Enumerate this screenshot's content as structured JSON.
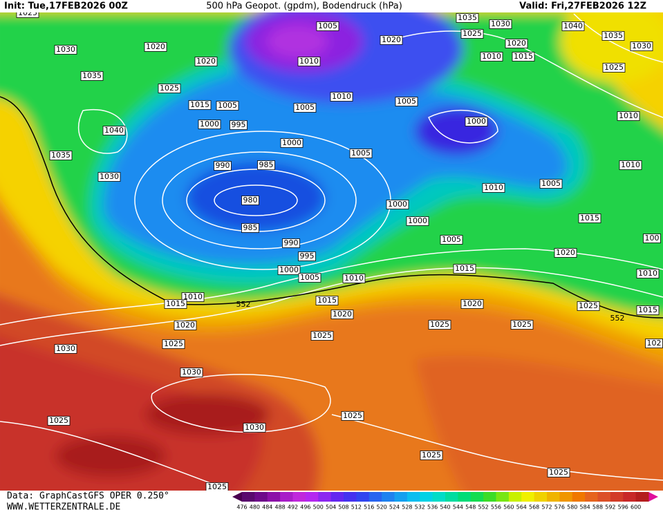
{
  "header": {
    "init": "Init: Tue,17FEB2026 00Z",
    "title": "500 hPa Geopot. (gpdm), Bodendruck (hPa)",
    "valid": "Valid: Fri,27FEB2026 12Z"
  },
  "footer": {
    "data_source": "Data: GraphCastGFS OPER 0.250°",
    "website": "WWW.WETTERZENTRALE.DE"
  },
  "colorbar": {
    "labels": [
      476,
      480,
      484,
      488,
      492,
      496,
      500,
      504,
      508,
      512,
      516,
      520,
      524,
      528,
      532,
      536,
      540,
      544,
      548,
      552,
      556,
      560,
      564,
      568,
      572,
      576,
      580,
      584,
      588,
      592,
      596,
      600
    ]
  },
  "isobar_labels": [
    1025,
    1030,
    1035,
    1040,
    1035,
    1030,
    1020,
    1020,
    1025,
    1015,
    1005,
    1000,
    995,
    990,
    985,
    980,
    985,
    990,
    995,
    1000,
    1005,
    1010,
    1010,
    1015,
    552,
    1015,
    1020,
    1020,
    1025,
    1025,
    1030,
    1030,
    1025,
    1030,
    1025,
    1025,
    1025,
    1025,
    1005,
    1010,
    1005,
    1010,
    1000,
    1005,
    1020,
    1035,
    1030,
    1025,
    1020,
    1010,
    1015,
    1005,
    1000,
    1000,
    1000,
    1005,
    1010,
    1005,
    1015,
    1015,
    1020,
    1025,
    552,
    1020,
    1025,
    1025,
    1040,
    1035,
    1030,
    1025,
    1010,
    1010,
    1010,
    1015,
    100,
    102
  ]
}
